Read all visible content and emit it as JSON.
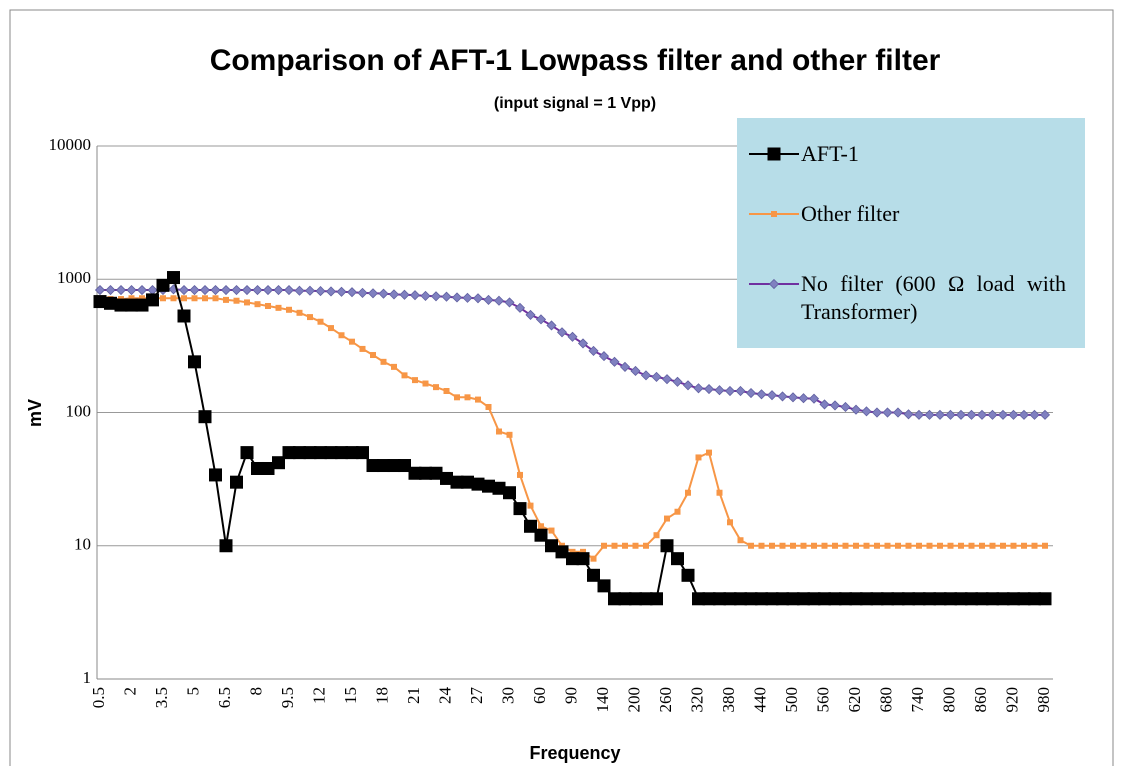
{
  "chart_data": {
    "type": "line",
    "title": "Comparison of AFT-1 Lowpass filter and other filter",
    "subtitle": "(input signal = 1 Vpp)",
    "x_label": "Frequency",
    "y_label": "mV",
    "log_y": true,
    "grid": true,
    "legend": "top-right",
    "ylim": [
      1,
      10000
    ],
    "yticks": [
      1,
      10,
      100,
      1000,
      10000
    ],
    "categories": [
      0.5,
      null,
      null,
      2,
      null,
      null,
      3.5,
      null,
      null,
      5,
      null,
      null,
      6.5,
      null,
      null,
      8,
      null,
      null,
      9.5,
      null,
      null,
      12,
      null,
      null,
      15,
      null,
      null,
      18,
      null,
      null,
      21,
      null,
      null,
      24,
      null,
      null,
      27,
      null,
      null,
      30,
      null,
      null,
      60,
      null,
      null,
      90,
      null,
      null,
      140,
      null,
      null,
      200,
      null,
      null,
      260,
      null,
      null,
      320,
      null,
      null,
      380,
      null,
      null,
      440,
      null,
      null,
      500,
      null,
      null,
      560,
      null,
      null,
      620,
      null,
      null,
      680,
      null,
      null,
      740,
      null,
      null,
      800,
      null,
      null,
      860,
      null,
      null,
      920,
      null,
      null,
      980
    ],
    "series": [
      {
        "name": "AFT-1",
        "color": "#000000",
        "marker": "square",
        "values": [
          680,
          660,
          640,
          640,
          640,
          700,
          900,
          1030,
          530,
          240,
          93,
          34,
          10,
          30,
          50,
          38,
          38,
          42,
          50,
          50,
          50,
          50,
          50,
          50,
          50,
          50,
          40,
          40,
          40,
          40,
          35,
          35,
          35,
          32,
          30,
          30,
          29,
          28,
          27,
          25,
          19,
          14,
          12,
          10,
          9,
          8,
          8,
          6,
          5,
          4,
          4,
          4,
          4,
          4,
          10,
          8,
          6,
          4,
          4,
          4,
          4,
          4,
          4,
          4,
          4,
          4,
          4,
          4,
          4,
          4,
          4,
          4,
          4,
          4,
          4,
          4,
          4,
          4,
          4,
          4,
          4,
          4,
          4,
          4,
          4,
          4,
          4,
          4,
          4,
          4,
          4
        ]
      },
      {
        "name": "Other filter",
        "color": "#f79646",
        "marker": "square",
        "values": [
          710,
          710,
          710,
          720,
          720,
          720,
          720,
          720,
          720,
          720,
          720,
          720,
          700,
          690,
          670,
          650,
          630,
          610,
          590,
          560,
          520,
          480,
          430,
          380,
          340,
          300,
          270,
          240,
          220,
          190,
          175,
          165,
          155,
          145,
          130,
          130,
          125,
          110,
          72,
          68,
          34,
          20,
          14,
          13,
          10,
          9,
          9,
          8,
          10,
          10,
          10,
          10,
          10,
          12,
          16,
          18,
          25,
          46,
          50,
          25,
          15,
          11,
          10,
          10,
          10,
          10,
          10,
          10,
          10,
          10,
          10,
          10,
          10,
          10,
          10,
          10,
          10,
          10,
          10,
          10,
          10,
          10,
          10,
          10,
          10,
          10,
          10,
          10,
          10,
          10,
          10
        ]
      },
      {
        "name": "No filter  (600 Ω load with Transformer)",
        "color": "#7030a0",
        "marker": "diamond",
        "values": [
          830,
          830,
          830,
          830,
          830,
          830,
          830,
          840,
          830,
          830,
          830,
          830,
          830,
          830,
          830,
          830,
          830,
          830,
          830,
          820,
          820,
          815,
          810,
          805,
          800,
          790,
          785,
          780,
          770,
          765,
          760,
          750,
          745,
          740,
          730,
          725,
          720,
          700,
          690,
          670,
          610,
          540,
          500,
          450,
          400,
          370,
          330,
          290,
          265,
          240,
          220,
          205,
          190,
          185,
          178,
          170,
          160,
          152,
          150,
          147,
          145,
          145,
          140,
          137,
          135,
          132,
          130,
          128,
          127,
          115,
          113,
          110,
          105,
          102,
          100,
          100,
          100,
          97,
          96,
          96,
          96,
          96,
          96,
          96,
          96,
          96,
          96,
          96,
          96,
          96,
          96
        ]
      }
    ]
  }
}
